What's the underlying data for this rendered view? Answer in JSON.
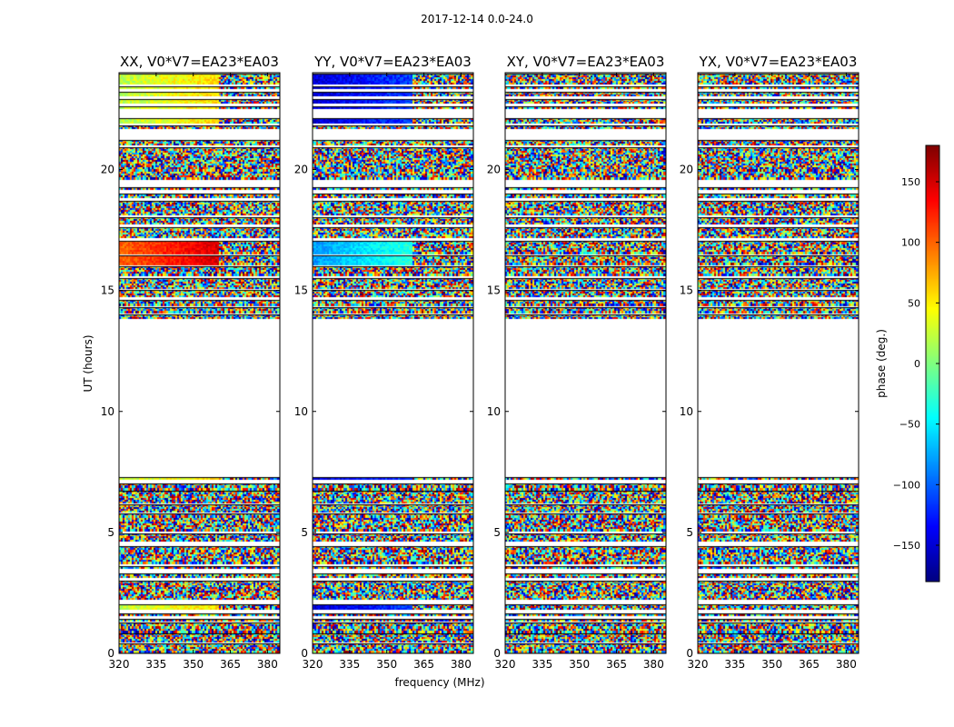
{
  "figure_title": "2017-12-14 0.0-24.0",
  "chart_data": {
    "type": "heatmap",
    "shared": {
      "xlabel": "frequency (MHz)",
      "ylabel": "UT (hours)",
      "x_range": [
        320,
        385
      ],
      "y_range": [
        0,
        24
      ],
      "x_ticks": [
        320,
        335,
        350,
        365,
        380
      ],
      "y_ticks": [
        0,
        5,
        10,
        15,
        20
      ],
      "colormap": "jet",
      "colorbar": {
        "label": "phase (deg.)",
        "range": [
          -180,
          180
        ],
        "ticks": [
          150,
          100,
          50,
          0,
          -50,
          -100,
          -150
        ],
        "tick_labels": [
          "150",
          "100",
          "50",
          "0",
          "−50",
          "−100",
          "−150"
        ]
      },
      "data_gap_hours": [
        7.5,
        13.8
      ],
      "observed_intervals_hours": [
        [
          0.0,
          0.4
        ],
        [
          0.45,
          0.8
        ],
        [
          0.85,
          1.25
        ],
        [
          1.3,
          1.4
        ],
        [
          1.55,
          1.65
        ],
        [
          1.8,
          2.0
        ],
        [
          2.2,
          3.0
        ],
        [
          3.1,
          3.3
        ],
        [
          3.5,
          3.6
        ],
        [
          3.7,
          4.4
        ],
        [
          4.6,
          4.95
        ],
        [
          5.05,
          5.75
        ],
        [
          5.8,
          6.15
        ],
        [
          6.2,
          6.7
        ],
        [
          6.75,
          7.0
        ],
        [
          7.15,
          7.25
        ],
        [
          13.8,
          14.0
        ],
        [
          14.05,
          14.3
        ],
        [
          14.35,
          14.6
        ],
        [
          14.7,
          15.0
        ],
        [
          15.05,
          15.5
        ],
        [
          15.6,
          16.0
        ],
        [
          16.05,
          16.45
        ],
        [
          16.5,
          17.05
        ],
        [
          17.15,
          17.6
        ],
        [
          17.7,
          18.0
        ],
        [
          18.1,
          18.7
        ],
        [
          18.8,
          19.0
        ],
        [
          19.15,
          19.25
        ],
        [
          19.6,
          20.9
        ],
        [
          21.0,
          21.2
        ],
        [
          21.65,
          21.8
        ],
        [
          21.9,
          22.1
        ],
        [
          22.5,
          22.6
        ],
        [
          22.7,
          22.9
        ],
        [
          23.0,
          23.2
        ],
        [
          23.3,
          23.4
        ],
        [
          23.5,
          23.95
        ]
      ]
    },
    "panels": [
      {
        "title": "XX, V0*V7=EA23*EA03",
        "coherent_phase_deg": 20,
        "coherent_block_phase_deg": 120
      },
      {
        "title": "YY, V0*V7=EA23*EA03",
        "coherent_phase_deg": -150,
        "coherent_block_phase_deg": -60
      },
      {
        "title": "XY, V0*V7=EA23*EA03",
        "coherent_phase_deg": null,
        "coherent_block_phase_deg": null
      },
      {
        "title": "YX, V0*V7=EA23*EA03",
        "coherent_phase_deg": null,
        "coherent_block_phase_deg": null
      }
    ]
  }
}
